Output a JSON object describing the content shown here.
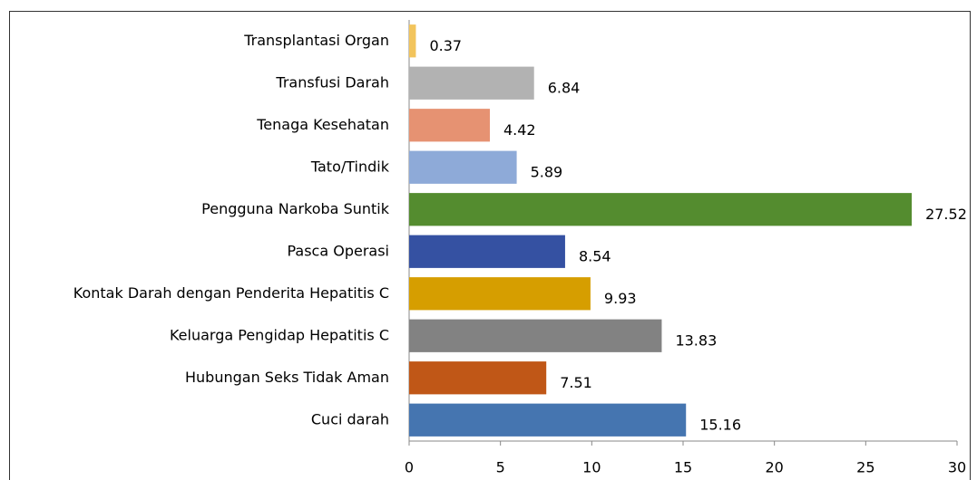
{
  "chart_data": {
    "type": "bar",
    "orientation": "horizontal",
    "categories": [
      "Transplantasi Organ",
      "Transfusi Darah",
      "Tenaga Kesehatan",
      "Tato/Tindik",
      "Pengguna Narkoba Suntik",
      "Pasca Operasi",
      "Kontak Darah dengan Penderita Hepatitis C",
      "Keluarga Pengidap Hepatitis C",
      "Hubungan Seks Tidak Aman",
      "Cuci darah"
    ],
    "values": [
      0.37,
      6.84,
      4.42,
      5.89,
      27.52,
      8.54,
      9.93,
      13.83,
      7.51,
      15.16
    ],
    "colors": [
      "#f2c45c",
      "#b2b2b2",
      "#e69272",
      "#8eaad8",
      "#548c2f",
      "#3551a2",
      "#d69e00",
      "#828282",
      "#c05717",
      "#4575b0"
    ],
    "xlim": [
      0,
      30
    ],
    "xticks": [
      0,
      5,
      10,
      15,
      20,
      25,
      30
    ]
  }
}
